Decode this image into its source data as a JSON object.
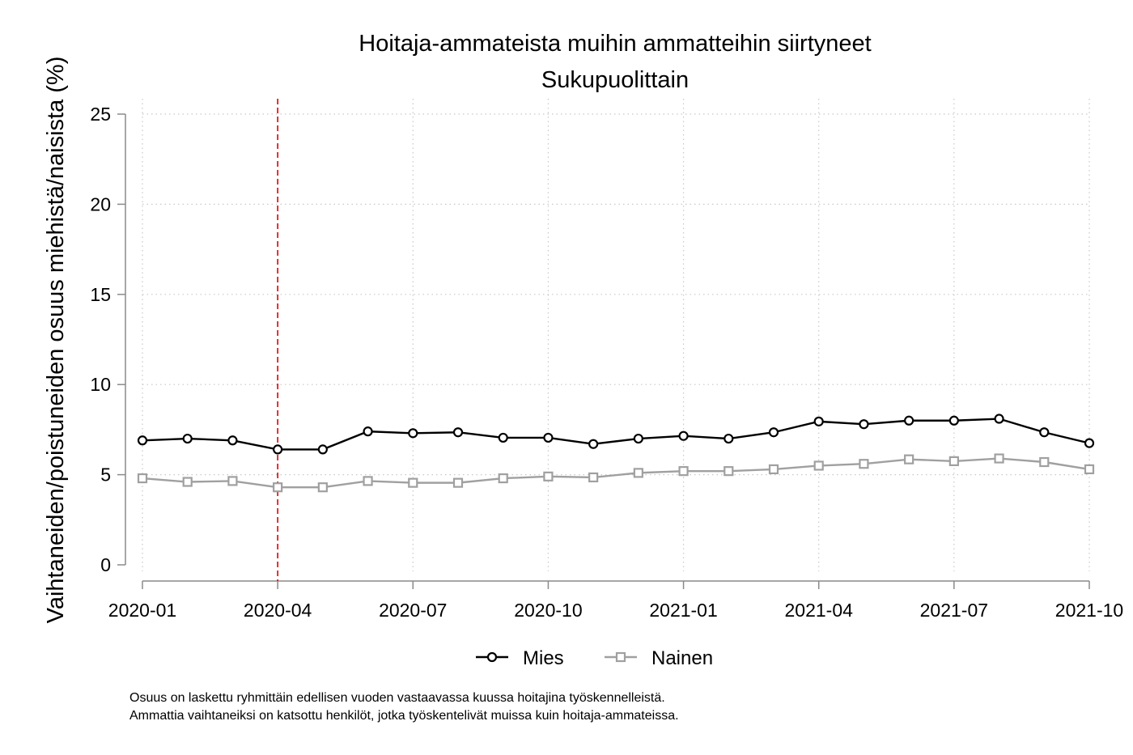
{
  "chart_data": {
    "type": "line",
    "title": "Hoitaja-ammateista muihin ammatteihin siirtyneet",
    "subtitle": "Sukupuolittain",
    "ylabel": "Vaihtaneiden/poistuneiden osuus miehistä/naisista (%)",
    "xlabel": "",
    "ylim": [
      0,
      25
    ],
    "yticks": [
      0,
      5,
      10,
      15,
      20,
      25
    ],
    "categories": [
      "2020-01",
      "2020-02",
      "2020-03",
      "2020-04",
      "2020-05",
      "2020-06",
      "2020-07",
      "2020-08",
      "2020-09",
      "2020-10",
      "2020-11",
      "2020-12",
      "2021-01",
      "2021-02",
      "2021-03",
      "2021-04",
      "2021-05",
      "2021-06",
      "2021-07",
      "2021-08",
      "2021-09",
      "2021-10"
    ],
    "xtick_labels": [
      "2020-01",
      "2020-04",
      "2020-07",
      "2020-10",
      "2021-01",
      "2021-04",
      "2021-07",
      "2021-10"
    ],
    "grid": true,
    "legend_position": "bottom",
    "reference_line": {
      "x": "2020-04",
      "color": "#e00000",
      "style": "dashed"
    },
    "series": [
      {
        "name": "Mies",
        "color": "#000000",
        "marker": "circle",
        "values": [
          6.9,
          7.0,
          6.9,
          6.4,
          6.4,
          7.4,
          7.3,
          7.35,
          7.05,
          7.05,
          6.7,
          7.0,
          7.15,
          7.0,
          7.35,
          7.95,
          7.8,
          8.0,
          8.0,
          8.1,
          7.35,
          6.75
        ]
      },
      {
        "name": "Nainen",
        "color": "#a0a0a0",
        "marker": "square",
        "values": [
          4.8,
          4.6,
          4.65,
          4.3,
          4.3,
          4.65,
          4.55,
          4.55,
          4.8,
          4.9,
          4.85,
          5.1,
          5.2,
          5.2,
          5.3,
          5.5,
          5.6,
          5.85,
          5.75,
          5.9,
          5.7,
          5.3
        ]
      }
    ]
  },
  "notes": {
    "line1": "Osuus on laskettu ryhmittäin edellisen vuoden vastaavassa kuussa hoitajina työskennelleistä.",
    "line2": "Ammattia vaihtaneiksi on katsottu henkilöt, jotka työskentelivät muissa kuin hoitaja-ammateissa."
  }
}
